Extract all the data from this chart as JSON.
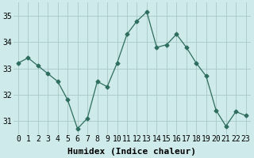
{
  "x": [
    0,
    1,
    2,
    3,
    4,
    5,
    6,
    7,
    8,
    9,
    10,
    11,
    12,
    13,
    14,
    15,
    16,
    17,
    18,
    19,
    20,
    21,
    22,
    23
  ],
  "y": [
    33.2,
    33.4,
    33.1,
    32.8,
    32.5,
    31.8,
    30.7,
    31.1,
    32.5,
    32.3,
    33.2,
    34.3,
    34.8,
    35.15,
    33.8,
    33.9,
    34.3,
    33.8,
    33.2,
    32.7,
    31.4,
    30.8,
    31.35,
    31.2
  ],
  "line_color": "#2e6e5e",
  "marker": "D",
  "marker_size": 2.5,
  "bg_color": "#ceeaea",
  "grid_color": "#a8c8c8",
  "xlabel": "Humidex (Indice chaleur)",
  "xlabel_fontsize": 8,
  "tick_fontsize": 7,
  "ylim": [
    30.5,
    35.5
  ],
  "yticks": [
    31,
    32,
    33,
    34,
    35
  ],
  "xticks": [
    0,
    1,
    2,
    3,
    4,
    5,
    6,
    7,
    8,
    9,
    10,
    11,
    12,
    13,
    14,
    15,
    16,
    17,
    18,
    19,
    20,
    21,
    22,
    23
  ]
}
